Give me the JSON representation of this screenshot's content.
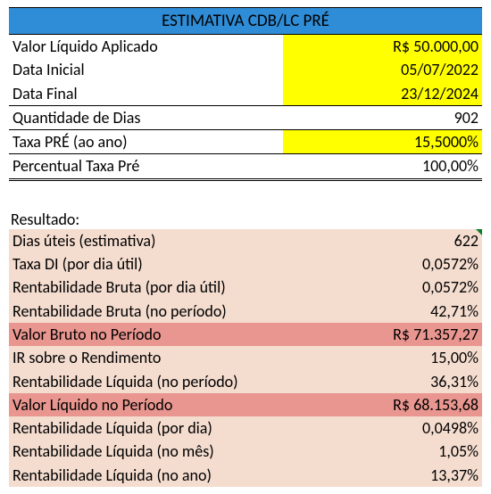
{
  "colors": {
    "title_bg": "#2f8cd6",
    "title_text": "#000000",
    "highlight_yellow": "#ffff00",
    "result_bg": "#f4dccf",
    "result_emph_bg": "#e8968f",
    "border": "#000000"
  },
  "title": "ESTIMATIVA CDB/LC PRÉ",
  "inputs": {
    "rows": [
      {
        "label": "Valor Líquido Aplicado",
        "value": "R$ 50.000,00",
        "value_bg": "highlight_yellow",
        "border": "none"
      },
      {
        "label": "Data Inicial",
        "value": "05/07/2022",
        "value_bg": "highlight_yellow",
        "border": "none"
      },
      {
        "label": "Data Final",
        "value": "23/12/2024",
        "value_bg": "highlight_yellow",
        "border": "bottom"
      },
      {
        "label": "Quantidade de Dias",
        "value": "902",
        "value_bg": null,
        "border": "bottom"
      },
      {
        "label": "Taxa PRÉ (ao ano)",
        "value": "15,5000%",
        "value_bg": "highlight_yellow",
        "border": "bottom"
      },
      {
        "label": "Percentual Taxa Pré",
        "value": "100,00%",
        "value_bg": null,
        "border": "double"
      }
    ]
  },
  "result_label": "Resultado:",
  "results": {
    "bg": "result_bg",
    "rows": [
      {
        "label": "Dias úteis (estimativa)",
        "value": "622",
        "emph": false,
        "indicator": true
      },
      {
        "label": "Taxa DI (por dia útil)",
        "value": "0,0572%",
        "emph": false
      },
      {
        "label": "Rentabilidade Bruta (por dia útil)",
        "value": "0,0572%",
        "emph": false
      },
      {
        "label": "Rentabilidade Bruta (no período)",
        "value": "42,71%",
        "emph": false
      },
      {
        "label": "Valor Bruto no Período",
        "value": "R$ 71.357,27",
        "emph": true
      },
      {
        "label": "IR sobre o Rendimento",
        "value": "15,00%",
        "emph": false
      },
      {
        "label": "Rentabilidade Líquida (no período)",
        "value": "36,31%",
        "emph": false
      },
      {
        "label": "Valor Líquido no Período",
        "value": "R$ 68.153,68",
        "emph": true
      },
      {
        "label": "Rentabilidade Líquida (por dia)",
        "value": "0,0498%",
        "emph": false
      },
      {
        "label": "Rentabilidade Líquida (no mês)",
        "value": "1,05%",
        "emph": false
      },
      {
        "label": "Rentabilidade Líquida (no ano)",
        "value": "13,37%",
        "emph": false
      }
    ]
  }
}
